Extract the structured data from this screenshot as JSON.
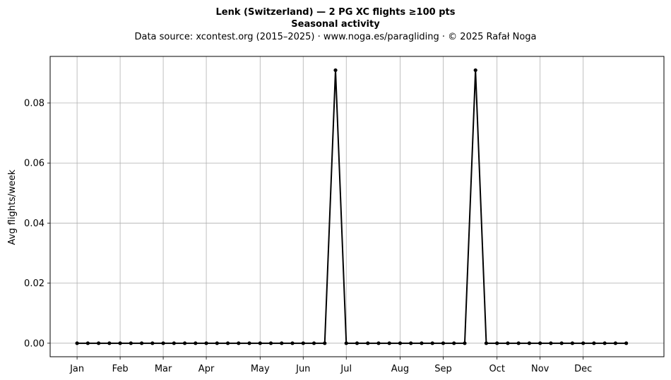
{
  "chart_data": {
    "type": "line",
    "title": "Lenk (Switzerland)  —  2 PG XC flights ≥100 pts",
    "subtitle": "Seasonal activity",
    "source": "Data source: xcontest.org (2015–2025)  ·  www.noga.es/paragliding  ·  © 2025 Rafał Noga",
    "xlabel": "",
    "ylabel": "Avg flights/week",
    "ylim": [
      -0.0045,
      0.0955
    ],
    "xlim": [
      -2.5,
      54.5
    ],
    "grid": true,
    "y_ticks": [
      "0.00",
      "0.02",
      "0.04",
      "0.06",
      "0.08"
    ],
    "x_ticks": [
      {
        "label": "Jan",
        "week": 0
      },
      {
        "label": "Feb",
        "week": 4
      },
      {
        "label": "Mar",
        "week": 8
      },
      {
        "label": "Apr",
        "week": 12
      },
      {
        "label": "May",
        "week": 17
      },
      {
        "label": "Jun",
        "week": 21
      },
      {
        "label": "Jul",
        "week": 25
      },
      {
        "label": "Aug",
        "week": 30
      },
      {
        "label": "Sep",
        "week": 34
      },
      {
        "label": "Oct",
        "week": 39
      },
      {
        "label": "Nov",
        "week": 43
      },
      {
        "label": "Dec",
        "week": 47
      }
    ],
    "series": [
      {
        "color": "#000000",
        "x": [
          0,
          1,
          2,
          3,
          4,
          5,
          6,
          7,
          8,
          9,
          10,
          11,
          12,
          13,
          14,
          15,
          16,
          17,
          18,
          19,
          20,
          21,
          22,
          23,
          24,
          25,
          26,
          27,
          28,
          29,
          30,
          31,
          32,
          33,
          34,
          35,
          36,
          37,
          38,
          39,
          40,
          41,
          42,
          43,
          44,
          45,
          46,
          47,
          48,
          49,
          50,
          51
        ],
        "values": [
          0,
          0,
          0,
          0,
          0,
          0,
          0,
          0,
          0,
          0,
          0,
          0,
          0,
          0,
          0,
          0,
          0,
          0,
          0,
          0,
          0,
          0,
          0,
          0,
          0.0909,
          0,
          0,
          0,
          0,
          0,
          0,
          0,
          0,
          0,
          0,
          0,
          0,
          0.0909,
          0,
          0,
          0,
          0,
          0,
          0,
          0,
          0,
          0,
          0,
          0,
          0,
          0,
          0
        ]
      }
    ]
  }
}
